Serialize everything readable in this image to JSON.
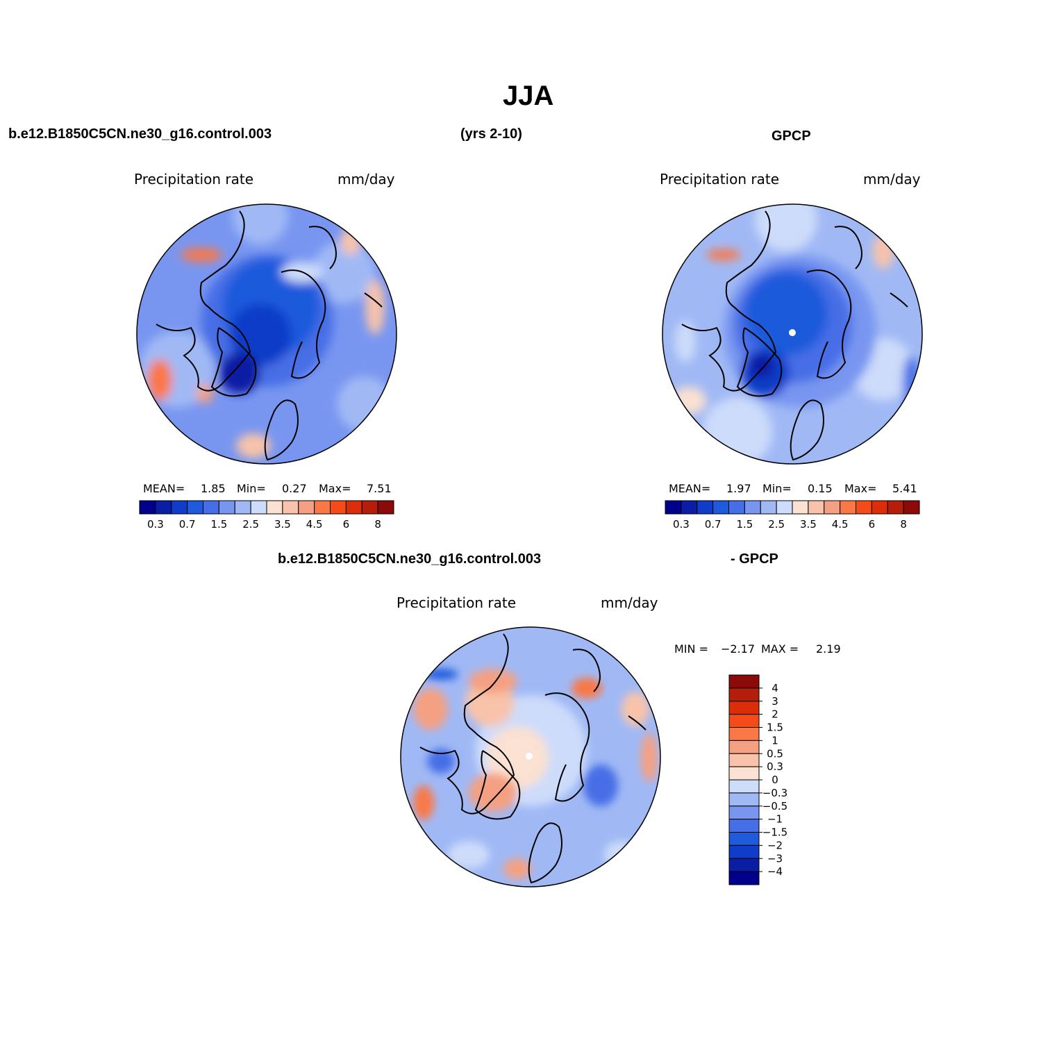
{
  "figure": {
    "title": "JJA",
    "case_name": "b.e12.B1850C5CN.ne30_g16.control.003",
    "years": "(yrs 2-10)",
    "obs_name": "GPCP",
    "diff_case": "b.e12.B1850C5CN.ne30_g16.control.003",
    "diff_suffix": "- GPCP"
  },
  "panels": {
    "model": {
      "variable": "Precipitation rate",
      "units": "mm/day",
      "mean_label": "MEAN=",
      "mean": "1.85",
      "min_label": "Min=",
      "min": "0.27",
      "max_label": "Max=",
      "max": "7.51"
    },
    "obs": {
      "variable": "Precipitation rate",
      "units": "mm/day",
      "mean_label": "MEAN=",
      "mean": "1.97",
      "min_label": "Min=",
      "min": "0.15",
      "max_label": "Max=",
      "max": "5.41"
    },
    "diff": {
      "variable": "Precipitation rate",
      "units": "mm/day",
      "min_label": "MIN =",
      "min": "−2.17",
      "max_label": "MAX =",
      "max": "2.19"
    }
  },
  "colorbars": {
    "abs_colors": [
      "#00008c",
      "#0a1ea5",
      "#0f3cc8",
      "#1e5adc",
      "#466ee6",
      "#7896f0",
      "#a0b9f5",
      "#cddcfa",
      "#fae1d2",
      "#f8c3aa",
      "#f5a082",
      "#fa7846",
      "#f54b19",
      "#dc2d0a",
      "#b41e0a",
      "#8c0a0a"
    ],
    "abs_labels": [
      "0.3",
      "0.7",
      "1.5",
      "2.5",
      "3.5",
      "4.5",
      "6",
      "8"
    ],
    "diff_colors": [
      "#8c0a0a",
      "#b41e0a",
      "#dc2d0a",
      "#f54b19",
      "#fa7846",
      "#f5a082",
      "#f8c3aa",
      "#fae1d2",
      "#cddcfa",
      "#a0b9f5",
      "#7896f0",
      "#466ee6",
      "#1e5adc",
      "#0f3cc8",
      "#0a1ea5",
      "#00008c"
    ],
    "diff_labels": [
      "4",
      "3",
      "2",
      "1.5",
      "1",
      "0.5",
      "0.3",
      "0",
      "−0.3",
      "−0.5",
      "−1",
      "−1.5",
      "−2",
      "−3",
      "−4"
    ]
  }
}
